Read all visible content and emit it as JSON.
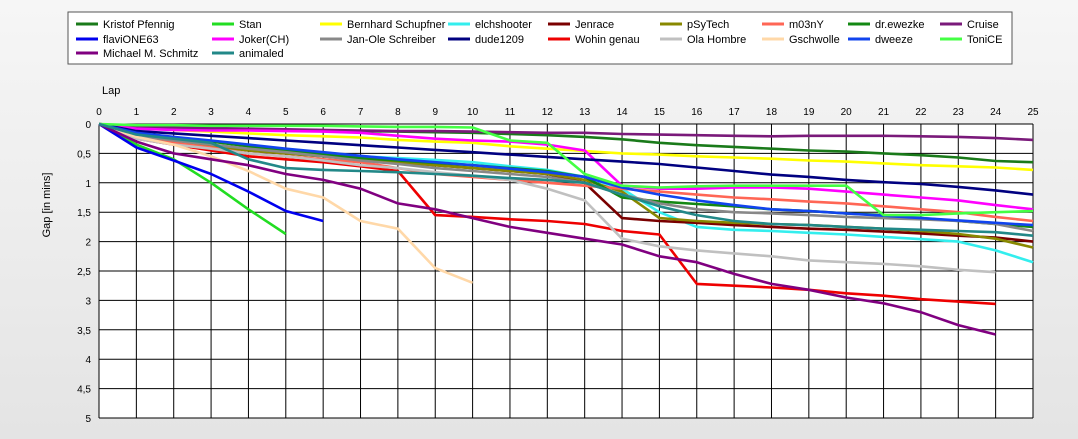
{
  "chart_data": {
    "type": "line",
    "xlabel": "Lap",
    "ylabel": "Gap [in mins]",
    "xlim": [
      0,
      25
    ],
    "ylim": [
      0,
      5
    ],
    "y_inverted": true,
    "x_ticks": [
      "0",
      "1",
      "2",
      "3",
      "4",
      "5",
      "6",
      "7",
      "8",
      "9",
      "10",
      "11",
      "12",
      "13",
      "14",
      "15",
      "16",
      "17",
      "18",
      "19",
      "20",
      "21",
      "22",
      "23",
      "24",
      "25"
    ],
    "y_ticks": [
      "0",
      "0,5",
      "1",
      "1,5",
      "2",
      "2,5",
      "3",
      "3,5",
      "4",
      "4,5",
      "5"
    ],
    "grid": true,
    "legend_position": "top",
    "series": [
      {
        "name": "Kristof Pfennig",
        "color": "#1a7a1a",
        "x": [
          0,
          1,
          2,
          3,
          4,
          5,
          6,
          7,
          8,
          9,
          10,
          11,
          12,
          13,
          14,
          15,
          16,
          17,
          18,
          19,
          20,
          21,
          22,
          23,
          24,
          25
        ],
        "y": [
          0,
          0.05,
          0.07,
          0.08,
          0.09,
          0.1,
          0.11,
          0.12,
          0.13,
          0.14,
          0.15,
          0.17,
          0.19,
          0.22,
          0.26,
          0.32,
          0.36,
          0.39,
          0.42,
          0.45,
          0.47,
          0.5,
          0.53,
          0.57,
          0.63,
          0.65
        ]
      },
      {
        "name": "Stan",
        "color": "#22dd22",
        "x": [
          0,
          1,
          2,
          3,
          4,
          5
        ],
        "y": [
          0,
          0.35,
          0.6,
          1.0,
          1.45,
          1.87
        ]
      },
      {
        "name": "Bernhard Schupfner",
        "color": "#ffff00",
        "x": [
          0,
          1,
          2,
          3,
          4,
          5,
          6,
          7,
          8,
          9,
          10,
          11,
          12,
          13,
          14,
          15,
          16,
          17,
          18,
          19,
          20,
          21,
          22,
          23,
          24,
          25
        ],
        "y": [
          0,
          0.05,
          0.1,
          0.13,
          0.16,
          0.19,
          0.21,
          0.23,
          0.27,
          0.3,
          0.32,
          0.38,
          0.42,
          0.46,
          0.5,
          0.52,
          0.55,
          0.57,
          0.59,
          0.62,
          0.64,
          0.67,
          0.7,
          0.72,
          0.74,
          0.78
        ]
      },
      {
        "name": "elchshooter",
        "color": "#33eeee",
        "x": [
          0,
          1,
          2,
          3,
          4,
          5,
          6,
          7,
          8,
          9,
          10,
          11,
          12,
          13,
          14,
          15,
          16,
          17,
          18,
          19,
          20,
          21,
          22,
          23,
          24,
          25
        ],
        "y": [
          0,
          0.18,
          0.28,
          0.36,
          0.42,
          0.46,
          0.5,
          0.55,
          0.58,
          0.61,
          0.65,
          0.72,
          0.78,
          0.9,
          1.1,
          1.5,
          1.75,
          1.8,
          1.82,
          1.85,
          1.88,
          1.92,
          1.96,
          2.0,
          2.15,
          2.35
        ]
      },
      {
        "name": "Jenrace",
        "color": "#7a0000",
        "x": [
          0,
          1,
          2,
          3,
          4,
          5,
          6,
          7,
          8,
          9,
          10,
          11,
          12,
          13,
          14,
          15,
          16,
          17,
          18,
          19,
          20,
          21,
          22,
          23,
          24,
          25
        ],
        "y": [
          0,
          0.2,
          0.3,
          0.35,
          0.45,
          0.5,
          0.55,
          0.6,
          0.65,
          0.7,
          0.75,
          0.8,
          0.85,
          1.0,
          1.6,
          1.65,
          1.68,
          1.72,
          1.75,
          1.78,
          1.8,
          1.83,
          1.86,
          1.9,
          1.93,
          2.0
        ]
      },
      {
        "name": "pSyTech",
        "color": "#888800",
        "x": [
          0,
          1,
          2,
          3,
          4,
          5,
          6,
          7,
          8,
          9,
          10,
          11,
          12,
          13,
          14,
          15,
          16,
          17,
          18,
          19,
          20,
          21,
          22,
          23,
          24,
          25
        ],
        "y": [
          0,
          0.22,
          0.3,
          0.38,
          0.45,
          0.5,
          0.55,
          0.6,
          0.65,
          0.7,
          0.75,
          0.8,
          0.85,
          0.95,
          1.15,
          1.6,
          1.65,
          1.68,
          1.7,
          1.72,
          1.75,
          1.78,
          1.82,
          1.87,
          1.95,
          2.1
        ]
      },
      {
        "name": "m03nY",
        "color": "#ff6655",
        "x": [
          0,
          1,
          2,
          3,
          4,
          5,
          6,
          7,
          8,
          9,
          10,
          11,
          12,
          13,
          14,
          15,
          16,
          17,
          18,
          19,
          20,
          21,
          22,
          23,
          24,
          25
        ],
        "y": [
          0,
          0.22,
          0.32,
          0.4,
          0.5,
          0.55,
          0.6,
          0.65,
          0.75,
          0.85,
          0.9,
          0.95,
          1.0,
          1.05,
          1.1,
          1.15,
          1.2,
          1.25,
          1.28,
          1.32,
          1.35,
          1.4,
          1.45,
          1.5,
          1.58,
          1.65
        ]
      },
      {
        "name": "dr.ewezke",
        "color": "#138813",
        "x": [
          0,
          1,
          2,
          3,
          4,
          5,
          6,
          7,
          8,
          9,
          10,
          11,
          12,
          13,
          14,
          15,
          16,
          17,
          18,
          19,
          20,
          21,
          22,
          23,
          24,
          25
        ],
        "y": [
          0,
          0.15,
          0.24,
          0.3,
          0.38,
          0.45,
          0.52,
          0.58,
          0.62,
          0.66,
          0.7,
          0.75,
          0.8,
          0.9,
          1.25,
          1.32,
          1.36,
          1.4,
          1.45,
          1.48,
          1.52,
          1.55,
          1.6,
          1.65,
          1.7,
          1.75
        ]
      },
      {
        "name": "Cruise",
        "color": "#7a1a7a",
        "x": [
          0,
          1,
          2,
          3,
          4,
          5,
          6,
          7,
          8,
          9,
          10,
          11,
          12,
          13,
          14,
          15,
          16,
          17,
          18,
          19,
          20,
          21,
          22,
          23,
          24,
          25
        ],
        "y": [
          0,
          0.05,
          0.06,
          0.07,
          0.08,
          0.09,
          0.1,
          0.11,
          0.12,
          0.12,
          0.13,
          0.14,
          0.15,
          0.15,
          0.17,
          0.18,
          0.19,
          0.2,
          0.21,
          0.2,
          0.2,
          0.2,
          0.21,
          0.22,
          0.24,
          0.27
        ]
      },
      {
        "name": "flaviONE63",
        "color": "#0000ee",
        "x": [
          0,
          1,
          2,
          3,
          4,
          5,
          6
        ],
        "y": [
          0,
          0.4,
          0.62,
          0.85,
          1.15,
          1.48,
          1.65
        ]
      },
      {
        "name": "Joker(CH)",
        "color": "#ff00ff",
        "x": [
          0,
          1,
          2,
          3,
          4,
          5,
          6,
          7,
          8,
          9,
          10,
          11,
          12,
          13,
          14,
          15,
          16,
          17,
          18,
          19,
          20,
          21,
          22,
          23,
          24,
          25
        ],
        "y": [
          0,
          0.08,
          0.1,
          0.11,
          0.11,
          0.12,
          0.13,
          0.15,
          0.2,
          0.25,
          0.28,
          0.3,
          0.35,
          0.45,
          1.05,
          1.1,
          1.1,
          1.08,
          1.08,
          1.1,
          1.15,
          1.2,
          1.25,
          1.3,
          1.38,
          1.45
        ]
      },
      {
        "name": "Jan-Ole Schreiber",
        "color": "#888888",
        "x": [
          0,
          1,
          2,
          3,
          4,
          5,
          6,
          7,
          8,
          9,
          10,
          11,
          12,
          13,
          14,
          15,
          16,
          17,
          18,
          19,
          20,
          21,
          22,
          23,
          24,
          25
        ],
        "y": [
          0,
          0.2,
          0.28,
          0.35,
          0.42,
          0.48,
          0.55,
          0.62,
          0.68,
          0.75,
          0.8,
          0.85,
          0.9,
          1.0,
          1.2,
          1.35,
          1.45,
          1.5,
          1.52,
          1.55,
          1.58,
          1.6,
          1.62,
          1.65,
          1.7,
          1.82
        ]
      },
      {
        "name": "dude1209",
        "color": "#000080",
        "x": [
          0,
          1,
          2,
          3,
          4,
          5,
          6,
          7,
          8,
          9,
          10,
          11,
          12,
          13,
          14,
          15,
          16,
          17,
          18,
          19,
          20,
          21,
          22,
          23,
          24,
          25
        ],
        "y": [
          0,
          0.12,
          0.16,
          0.2,
          0.24,
          0.28,
          0.32,
          0.36,
          0.4,
          0.44,
          0.48,
          0.52,
          0.56,
          0.6,
          0.64,
          0.68,
          0.74,
          0.8,
          0.86,
          0.9,
          0.95,
          0.99,
          1.02,
          1.07,
          1.13,
          1.2
        ]
      },
      {
        "name": "Wohin genau",
        "color": "#ee0000",
        "x": [
          0,
          1,
          2,
          3,
          4,
          5,
          6,
          7,
          8,
          9,
          10,
          11,
          12,
          13,
          14,
          15,
          16,
          17,
          18,
          19,
          20,
          21,
          22,
          23,
          24
        ],
        "y": [
          0,
          0.25,
          0.35,
          0.45,
          0.55,
          0.6,
          0.65,
          0.72,
          0.8,
          1.55,
          1.58,
          1.62,
          1.65,
          1.7,
          1.82,
          1.88,
          2.72,
          2.75,
          2.78,
          2.82,
          2.88,
          2.92,
          2.98,
          3.02,
          3.06
        ]
      },
      {
        "name": "Ola Hombre",
        "color": "#c0c0c0",
        "x": [
          0,
          1,
          2,
          3,
          4,
          5,
          6,
          7,
          8,
          9,
          10,
          11,
          12,
          13,
          14,
          15,
          16,
          17,
          18,
          19,
          20,
          21,
          22,
          23,
          24
        ],
        "y": [
          0,
          0.25,
          0.35,
          0.42,
          0.5,
          0.55,
          0.62,
          0.7,
          0.75,
          0.82,
          0.88,
          0.95,
          1.1,
          1.3,
          1.95,
          2.08,
          2.15,
          2.2,
          2.25,
          2.32,
          2.35,
          2.38,
          2.42,
          2.48,
          2.52
        ]
      },
      {
        "name": "Gschwolle",
        "color": "#ffd8a8",
        "x": [
          0,
          1,
          2,
          3,
          4,
          5,
          6,
          7,
          8,
          9,
          10
        ],
        "y": [
          0,
          0.22,
          0.35,
          0.55,
          0.8,
          1.1,
          1.25,
          1.65,
          1.78,
          2.45,
          2.7
        ]
      },
      {
        "name": "dweeze",
        "color": "#1144ee",
        "x": [
          0,
          1,
          2,
          3,
          4,
          5,
          6,
          7,
          8,
          9,
          10,
          11,
          12,
          13,
          14,
          15,
          16,
          17,
          18,
          19,
          20,
          21,
          22,
          23,
          24,
          25
        ],
        "y": [
          0,
          0.15,
          0.22,
          0.28,
          0.35,
          0.42,
          0.48,
          0.54,
          0.6,
          0.65,
          0.7,
          0.76,
          0.82,
          0.9,
          1.08,
          1.2,
          1.3,
          1.38,
          1.45,
          1.48,
          1.52,
          1.56,
          1.6,
          1.64,
          1.68,
          1.72
        ]
      },
      {
        "name": "ToniCE",
        "color": "#44ff44",
        "x": [
          0,
          1,
          2,
          3,
          4,
          5,
          6,
          7,
          8,
          9,
          10,
          11,
          12,
          13,
          14,
          15,
          16,
          17,
          18,
          19,
          20,
          21,
          22,
          23,
          24,
          25
        ],
        "y": [
          0,
          0.02,
          0.02,
          0.03,
          0.03,
          0.03,
          0.03,
          0.04,
          0.05,
          0.05,
          0.06,
          0.28,
          0.32,
          0.85,
          1.05,
          1.08,
          1.06,
          1.05,
          1.05,
          1.05,
          1.05,
          1.55,
          1.55,
          1.52,
          1.5,
          1.48
        ]
      },
      {
        "name": "Michael M. Schmitz",
        "color": "#800080",
        "x": [
          0,
          1,
          2,
          3,
          4,
          5,
          6,
          7,
          8,
          9,
          10,
          11,
          12,
          13,
          14,
          15,
          16,
          17,
          18,
          19,
          20,
          21,
          22,
          23,
          24
        ],
        "y": [
          0,
          0.3,
          0.5,
          0.6,
          0.7,
          0.85,
          0.95,
          1.1,
          1.35,
          1.45,
          1.6,
          1.75,
          1.85,
          1.95,
          2.05,
          2.25,
          2.35,
          2.55,
          2.72,
          2.82,
          2.95,
          3.05,
          3.2,
          3.42,
          3.58
        ]
      },
      {
        "name": "animaled",
        "color": "#228888",
        "x": [
          0,
          1,
          2,
          3,
          4,
          5,
          6,
          7,
          8,
          9,
          10,
          11,
          12,
          13,
          14,
          15,
          16,
          17,
          18,
          19,
          20,
          21,
          22,
          23,
          24,
          25
        ],
        "y": [
          0,
          0.18,
          0.25,
          0.32,
          0.6,
          0.75,
          0.78,
          0.8,
          0.82,
          0.85,
          0.88,
          0.92,
          0.95,
          1.0,
          1.2,
          1.4,
          1.55,
          1.65,
          1.7,
          1.72,
          1.75,
          1.78,
          1.8,
          1.82,
          1.84,
          1.9
        ]
      }
    ]
  }
}
